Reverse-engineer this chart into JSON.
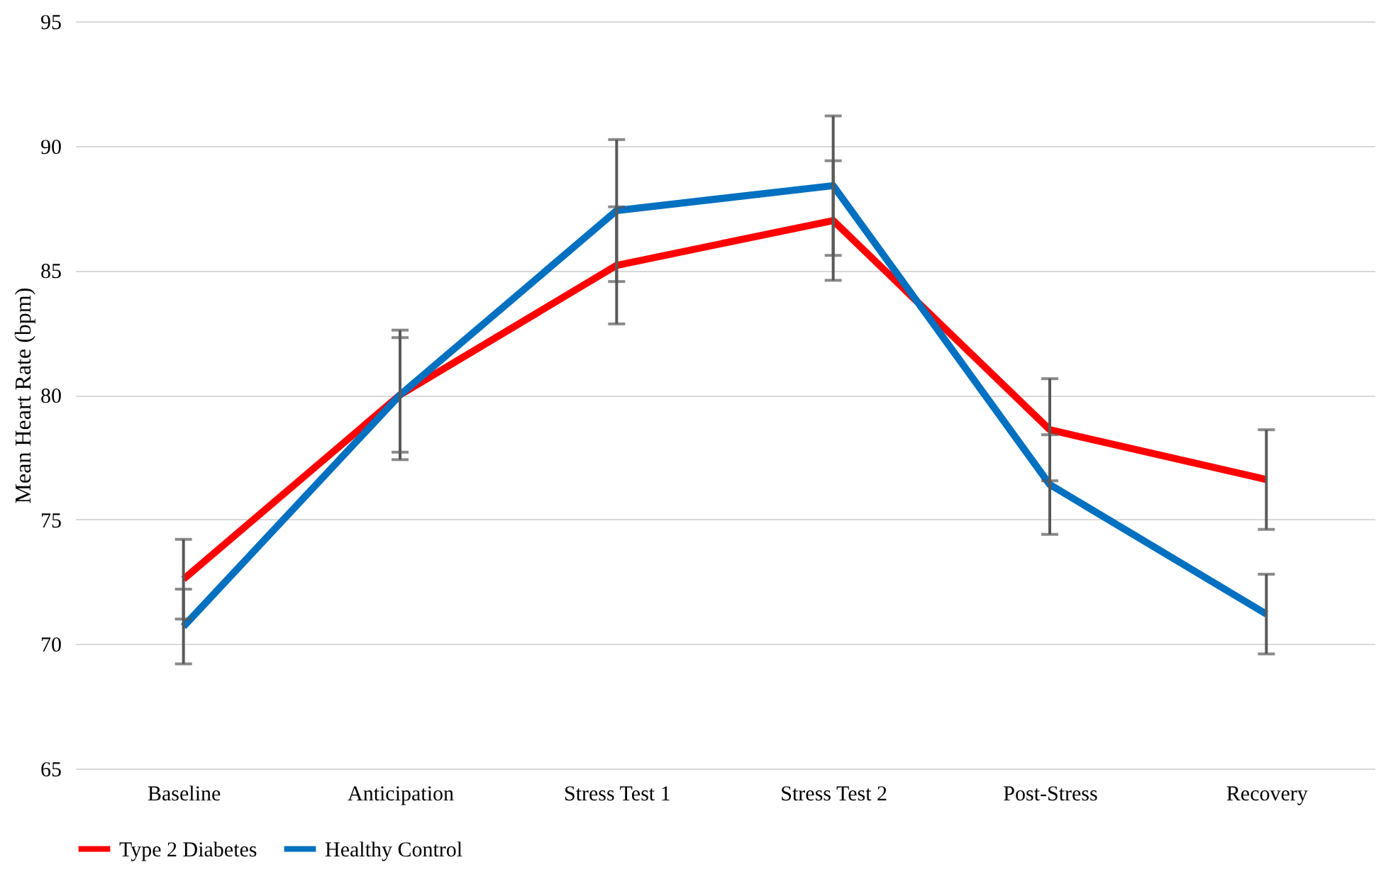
{
  "chart_data": {
    "type": "line",
    "ylabel": "Mean Heart Rate (bpm)",
    "categories": [
      "Baseline",
      "Anticipation",
      "Stress Test 1",
      "Stress Test 2",
      "Post-Stress",
      "Recovery"
    ],
    "series": [
      {
        "name": "Type 2 Diabetes",
        "color": "#ff0000",
        "values": [
          72.6,
          80.0,
          85.2,
          87.0,
          78.6,
          76.6
        ],
        "errors": [
          1.6,
          2.3,
          2.35,
          2.4,
          2.05,
          2.0
        ]
      },
      {
        "name": "Healthy Control",
        "color": "#0070c0",
        "values": [
          70.7,
          80.0,
          87.4,
          88.4,
          76.4,
          71.2
        ],
        "errors": [
          1.5,
          2.6,
          2.85,
          2.8,
          2.0,
          1.6
        ]
      }
    ],
    "ylim": [
      65,
      95
    ],
    "yticks": [
      65,
      70,
      75,
      80,
      85,
      90,
      95
    ],
    "grid": "y",
    "legend": "bottom",
    "marker": "none",
    "line_style": "solid"
  }
}
